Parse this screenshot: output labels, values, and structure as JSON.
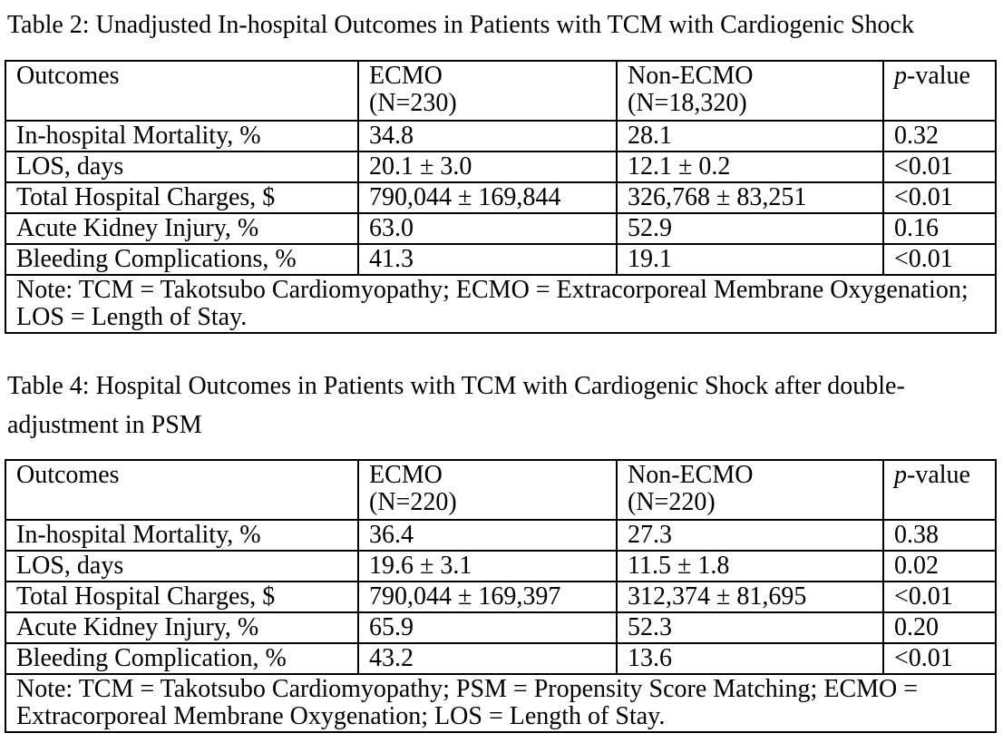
{
  "page": {
    "background_color": "#ffffff",
    "text_color": "#000000",
    "border_color": "#000000"
  },
  "tables": [
    {
      "title_lines": [
        "Table 2: Unadjusted In-hospital Outcomes in Patients with TCM with Cardiogenic Shock"
      ],
      "header": {
        "col1": {
          "line1": "Outcomes",
          "line2": ""
        },
        "col2": {
          "line1": "ECMO",
          "line2": "(N=230)"
        },
        "col3": {
          "line1": "Non-ECMO",
          "line2": "(N=18,320)"
        },
        "pvalue_italic": "p",
        "pvalue_rest": "-value"
      },
      "rows": [
        [
          "In-hospital Mortality, %",
          "34.8",
          "28.1",
          "0.32"
        ],
        [
          "LOS, days",
          "20.1 ± 3.0",
          "12.1 ± 0.2",
          "<0.01"
        ],
        [
          "Total Hospital Charges, $",
          "790,044 ± 169,844",
          "326,768 ± 83,251",
          "<0.01"
        ],
        [
          "Acute Kidney Injury, %",
          "63.0",
          "52.9",
          "0.16"
        ],
        [
          "Bleeding Complications, %",
          "41.3",
          "19.1",
          "<0.01"
        ]
      ],
      "note_lines": [
        "Note: TCM = Takotsubo Cardiomyopathy; ECMO = Extracorporeal Membrane Oxygenation;",
        "LOS = Length of Stay."
      ]
    },
    {
      "title_lines": [
        "Table 4: Hospital Outcomes in Patients with TCM with Cardiogenic Shock after double-",
        "adjustment in PSM"
      ],
      "header": {
        "col1": {
          "line1": "Outcomes",
          "line2": ""
        },
        "col2": {
          "line1": "ECMO",
          "line2": "(N=220)"
        },
        "col3": {
          "line1": "Non-ECMO",
          "line2": "(N=220)"
        },
        "pvalue_italic": "p",
        "pvalue_rest": "-value"
      },
      "rows": [
        [
          "In-hospital Mortality, %",
          "36.4",
          "27.3",
          "0.38"
        ],
        [
          "LOS, days",
          "19.6 ± 3.1",
          "11.5 ± 1.8",
          "0.02"
        ],
        [
          "Total Hospital Charges, $",
          "790,044 ± 169,397",
          "312,374 ± 81,695",
          "<0.01"
        ],
        [
          "Acute Kidney Injury, %",
          "65.9",
          "52.3",
          "0.20"
        ],
        [
          "Bleeding Complication, %",
          "43.2",
          "13.6",
          "<0.01"
        ]
      ],
      "note_lines": [
        "Note: TCM = Takotsubo Cardiomyopathy; PSM = Propensity Score Matching; ECMO =",
        "Extracorporeal Membrane Oxygenation; LOS = Length of Stay."
      ]
    }
  ]
}
